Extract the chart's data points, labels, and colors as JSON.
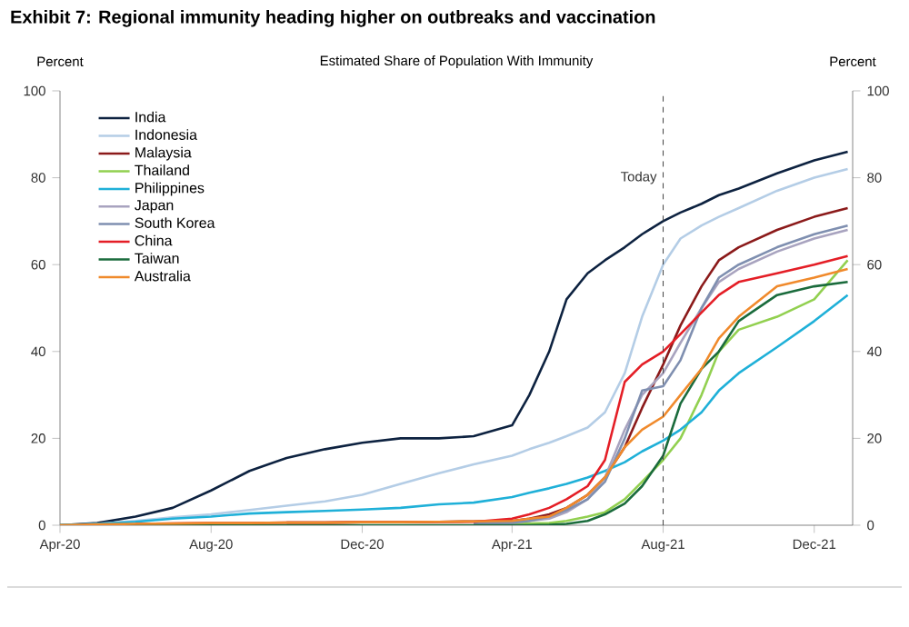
{
  "chart_data": {
    "type": "line",
    "title": "Exhibit 7: Regional immunity heading higher on outbreaks and vaccination",
    "subtitle": "Estimated Share of Population With Immunity",
    "ylabel": "Percent",
    "y2label": "Percent",
    "x": [
      "2020-04-01",
      "2020-05-01",
      "2020-06-01",
      "2020-07-01",
      "2020-08-01",
      "2020-09-01",
      "2020-10-01",
      "2020-11-01",
      "2020-12-01",
      "2021-01-01",
      "2021-02-01",
      "2021-03-01",
      "2021-04-01",
      "2021-04-15",
      "2021-05-01",
      "2021-05-15",
      "2021-06-01",
      "2021-06-15",
      "2021-07-01",
      "2021-07-15",
      "2021-08-01",
      "2021-08-15",
      "2021-09-01",
      "2021-09-15",
      "2021-10-01",
      "2021-11-01",
      "2021-12-01",
      "2021-12-28"
    ],
    "series": [
      {
        "name": "India",
        "color": "#0d2240",
        "values": [
          0,
          0.5,
          2,
          4,
          8,
          12.5,
          15.5,
          17.5,
          19,
          20,
          20,
          20.5,
          23,
          30,
          40,
          52,
          58,
          61,
          64,
          67,
          70,
          72,
          74,
          76,
          77.5,
          81,
          84,
          86
        ]
      },
      {
        "name": "Indonesia",
        "color": "#b4cde6",
        "values": [
          0,
          0.3,
          1,
          1.8,
          2.5,
          3.5,
          4.5,
          5.5,
          7,
          9.5,
          12,
          14,
          16,
          17.5,
          19,
          20.5,
          22.5,
          26,
          35,
          48,
          60,
          66,
          69,
          71,
          73,
          77,
          80,
          82
        ]
      },
      {
        "name": "Malaysia",
        "color": "#8b1a1a",
        "values": [
          null,
          null,
          null,
          null,
          null,
          null,
          0.6,
          0.6,
          0.7,
          0.7,
          0.8,
          0.9,
          1,
          1.5,
          2.5,
          4,
          7,
          11,
          18,
          27,
          37,
          46,
          55,
          61,
          64,
          68,
          71,
          73
        ]
      },
      {
        "name": "Thailand",
        "color": "#92d050",
        "values": [
          null,
          null,
          null,
          null,
          null,
          null,
          null,
          null,
          null,
          null,
          null,
          0.3,
          0.3,
          0.4,
          0.5,
          1,
          2,
          3,
          6,
          10,
          15,
          20,
          30,
          40,
          45,
          48,
          52,
          61
        ]
      },
      {
        "name": "Philippines",
        "color": "#1fb0d8",
        "values": [
          0,
          0.3,
          0.8,
          1.5,
          2,
          2.7,
          3,
          3.3,
          3.6,
          4,
          4.8,
          5.2,
          6.5,
          7.5,
          8.5,
          9.5,
          11,
          12.5,
          14.5,
          17,
          19.5,
          22,
          26,
          31,
          35,
          41,
          47,
          53
        ]
      },
      {
        "name": "Japan",
        "color": "#a8a3bf",
        "values": [
          null,
          null,
          null,
          null,
          null,
          null,
          null,
          null,
          null,
          null,
          null,
          0.5,
          0.5,
          1,
          1.5,
          3,
          6,
          11,
          22,
          30,
          35,
          42,
          50,
          56,
          59,
          63,
          66,
          68
        ]
      },
      {
        "name": "South Korea",
        "color": "#7f8fb0",
        "values": [
          null,
          null,
          null,
          null,
          null,
          null,
          null,
          null,
          null,
          null,
          null,
          0.5,
          0.6,
          1,
          2,
          3.5,
          6,
          10,
          20,
          31,
          32,
          38,
          50,
          57,
          60,
          64,
          67,
          69
        ]
      },
      {
        "name": "China",
        "color": "#e41e26",
        "values": [
          null,
          null,
          0.3,
          0.4,
          0.5,
          0.5,
          0.6,
          0.6,
          0.7,
          0.7,
          0.8,
          0.8,
          1.5,
          2.5,
          4,
          6,
          9,
          15,
          33,
          37,
          40,
          44,
          49,
          53,
          56,
          58,
          60,
          62
        ]
      },
      {
        "name": "Taiwan",
        "color": "#1a6b3c",
        "values": [
          0,
          0,
          0,
          0,
          0,
          0,
          0,
          0,
          0,
          0,
          0,
          0,
          0,
          0,
          0.1,
          0.3,
          1,
          2.5,
          5,
          9,
          16,
          28,
          36,
          40,
          47,
          53,
          55,
          56
        ]
      },
      {
        "name": "Australia",
        "color": "#f08a2c",
        "values": [
          0,
          0.2,
          0.3,
          0.4,
          0.5,
          0.5,
          0.6,
          0.6,
          0.7,
          0.7,
          0.8,
          0.9,
          1,
          1.5,
          2,
          4,
          7,
          11,
          18,
          22,
          25,
          30,
          36,
          43,
          48,
          55,
          57,
          59
        ]
      }
    ],
    "xlim": [
      "2020-04-01",
      "2022-01-01"
    ],
    "xticks": [
      {
        "value": "2020-04-01",
        "label": "Apr-20"
      },
      {
        "value": "2020-08-01",
        "label": "Aug-20"
      },
      {
        "value": "2020-12-01",
        "label": "Dec-20"
      },
      {
        "value": "2021-04-01",
        "label": "Apr-21"
      },
      {
        "value": "2021-08-01",
        "label": "Aug-21"
      },
      {
        "value": "2021-12-01",
        "label": "Dec-21"
      }
    ],
    "ylim": [
      0,
      100
    ],
    "yticks": [
      0,
      20,
      40,
      60,
      80,
      100
    ],
    "y2lim": [
      0,
      100
    ],
    "y2ticks": [
      0,
      20,
      40,
      60,
      80,
      100
    ],
    "ref_lines": [
      {
        "axis": "x",
        "value": "2021-08-01",
        "label": "Today",
        "line_style": "dashed",
        "color": "#404040"
      }
    ],
    "legend": "top left"
  }
}
